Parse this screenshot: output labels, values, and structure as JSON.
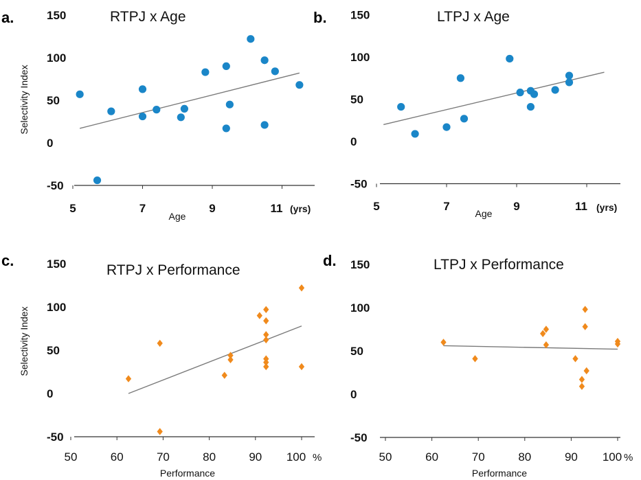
{
  "colors": {
    "age_marker": "#1a86c8",
    "perf_marker": "#f08a1c",
    "fit_line": "#7a7a7a",
    "axis": "#333333"
  },
  "chart_data": [
    {
      "type": "scatter",
      "panel_letter": "a.",
      "title": "RTPJ x Age",
      "xlabel": "Age",
      "ylabel": "Selectivity Index",
      "x_unit": "(yrs)",
      "xlim": [
        5,
        12
      ],
      "ylim": [
        -50,
        150
      ],
      "xticks": [
        5,
        7,
        9,
        11
      ],
      "yticks": [
        150,
        100,
        50,
        0,
        -50
      ],
      "marker": "circle",
      "points": [
        [
          5.2,
          57
        ],
        [
          5.7,
          -44
        ],
        [
          6.1,
          37
        ],
        [
          7.0,
          63
        ],
        [
          7.0,
          31
        ],
        [
          7.4,
          39
        ],
        [
          8.1,
          30
        ],
        [
          8.2,
          40
        ],
        [
          8.8,
          83
        ],
        [
          9.4,
          90
        ],
        [
          9.4,
          17
        ],
        [
          9.5,
          45
        ],
        [
          10.1,
          122
        ],
        [
          10.5,
          97
        ],
        [
          10.5,
          21
        ],
        [
          10.8,
          84
        ],
        [
          11.5,
          68
        ]
      ],
      "trendline": [
        [
          5.2,
          17
        ],
        [
          11.5,
          82
        ]
      ]
    },
    {
      "type": "scatter",
      "panel_letter": "b.",
      "title": "LTPJ x Age",
      "xlabel": "Age",
      "ylabel": "",
      "x_unit": "(yrs)",
      "xlim": [
        5,
        12
      ],
      "ylim": [
        -50,
        150
      ],
      "xticks": [
        5,
        7,
        9,
        11
      ],
      "yticks": [
        150,
        100,
        50,
        0,
        -50
      ],
      "marker": "circle",
      "points": [
        [
          5.7,
          41
        ],
        [
          6.1,
          9
        ],
        [
          7.0,
          17
        ],
        [
          7.4,
          75
        ],
        [
          7.5,
          27
        ],
        [
          8.8,
          98
        ],
        [
          9.1,
          58
        ],
        [
          9.4,
          60
        ],
        [
          9.4,
          41
        ],
        [
          9.5,
          56
        ],
        [
          10.1,
          61
        ],
        [
          10.5,
          70
        ],
        [
          10.5,
          78
        ]
      ],
      "trendline": [
        [
          5.2,
          20
        ],
        [
          11.5,
          82
        ]
      ]
    },
    {
      "type": "scatter",
      "panel_letter": "c.",
      "title": "RTPJ x Performance",
      "xlabel": "Performance",
      "ylabel": "Selectivity Index",
      "x_unit": "%",
      "xlim": [
        50,
        100
      ],
      "ylim": [
        -50,
        150
      ],
      "xticks": [
        50,
        60,
        70,
        80,
        90,
        100
      ],
      "yticks": [
        150,
        100,
        50,
        0,
        -50
      ],
      "marker": "diamond",
      "points": [
        [
          62.5,
          17
        ],
        [
          69.3,
          58
        ],
        [
          69.3,
          -44
        ],
        [
          83.3,
          21
        ],
        [
          84.6,
          44
        ],
        [
          84.6,
          39
        ],
        [
          90.9,
          90
        ],
        [
          92.3,
          97
        ],
        [
          92.3,
          84
        ],
        [
          92.3,
          68
        ],
        [
          92.3,
          62
        ],
        [
          92.3,
          40
        ],
        [
          92.3,
          31
        ],
        [
          92.3,
          36
        ],
        [
          100,
          122
        ],
        [
          100,
          31
        ]
      ],
      "trendline": [
        [
          62.5,
          0
        ],
        [
          100,
          78
        ]
      ]
    },
    {
      "type": "scatter",
      "panel_letter": "d.",
      "title": "LTPJ x Performance",
      "xlabel": "Performance",
      "ylabel": "",
      "x_unit": "%",
      "xlim": [
        50,
        100
      ],
      "ylim": [
        -50,
        150
      ],
      "xticks": [
        50,
        60,
        70,
        80,
        90,
        100
      ],
      "yticks": [
        150,
        100,
        50,
        0,
        -50
      ],
      "marker": "diamond",
      "points": [
        [
          62.5,
          60
        ],
        [
          69.3,
          41
        ],
        [
          83.9,
          70
        ],
        [
          84.6,
          75
        ],
        [
          84.6,
          57
        ],
        [
          90.9,
          41
        ],
        [
          92.3,
          17
        ],
        [
          92.3,
          9
        ],
        [
          93.0,
          98
        ],
        [
          93.0,
          78
        ],
        [
          93.3,
          27
        ],
        [
          100,
          61
        ],
        [
          100,
          58
        ]
      ],
      "trendline": [
        [
          62.5,
          56
        ],
        [
          100,
          52
        ]
      ]
    }
  ]
}
